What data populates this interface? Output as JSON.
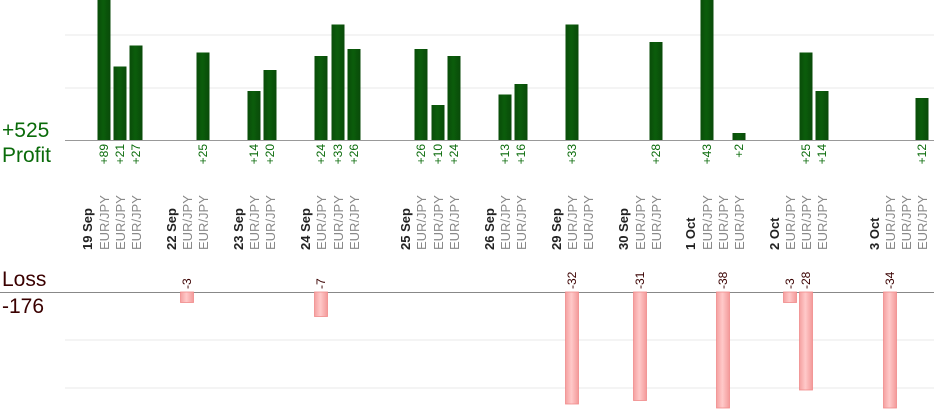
{
  "labels": {
    "profit_total": "+525",
    "profit_word": "Profit",
    "loss_word": "Loss",
    "loss_total": "-176"
  },
  "colors": {
    "profit_bar": "#0b5d0b",
    "profit_text": "#0a6b0a",
    "loss_bar": "#ffb3b3",
    "loss_text": "#3a0000",
    "date_text": "#222222",
    "pair_text": "#888888",
    "grid": "#e8e8e8",
    "axis": "#999999"
  },
  "chart_data": {
    "type": "bar",
    "title": "",
    "xlabel": "",
    "ylabel": "",
    "grid": true,
    "profit_total": 525,
    "loss_total": -176,
    "categories": [
      "19 Sep",
      "EUR/JPY",
      "EUR/JPY",
      "EUR/JPY",
      "22 Sep",
      "EUR/JPY",
      "EUR/JPY",
      "23 Sep",
      "EUR/JPY",
      "EUR/JPY",
      "24 Sep",
      "EUR/JPY",
      "EUR/JPY",
      "EUR/JPY",
      "25 Sep",
      "EUR/JPY",
      "EUR/JPY",
      "EUR/JPY",
      "26 Sep",
      "EUR/JPY",
      "EUR/JPY",
      "29 Sep",
      "EUR/JPY",
      "EUR/JPY",
      "30 Sep",
      "EUR/JPY",
      "EUR/JPY",
      "1 Oct",
      "EUR/JPY",
      "EUR/JPY",
      "EUR/JPY",
      "2 Oct",
      "EUR/JPY",
      "EUR/JPY",
      "EUR/JPY",
      "3 Oct",
      "EUR/JPY",
      "EUR/JPY",
      "EUR/JPY"
    ],
    "series": [
      {
        "values": [
          null,
          89,
          21,
          27,
          null,
          null,
          25,
          null,
          14,
          20,
          null,
          24,
          33,
          26,
          null,
          26,
          10,
          24,
          null,
          13,
          16,
          null,
          33,
          null,
          null,
          null,
          28,
          null,
          43,
          null,
          2,
          null,
          null,
          25,
          14,
          null,
          null,
          null,
          12
        ],
        "labels": [
          null,
          "+89",
          "+21",
          "+27",
          null,
          null,
          "+25",
          null,
          "+14",
          "+20",
          null,
          "+24",
          "+33",
          "+26",
          null,
          "+26",
          "+10",
          "+24",
          null,
          "+13",
          "+16",
          null,
          "+33",
          null,
          null,
          null,
          "+28",
          null,
          "+43",
          null,
          "+2",
          null,
          null,
          "+25",
          "+14",
          null,
          null,
          null,
          "+12"
        ]
      },
      {
        "values": [
          null,
          null,
          null,
          null,
          null,
          -3,
          null,
          null,
          null,
          null,
          null,
          -7,
          null,
          null,
          null,
          null,
          null,
          null,
          null,
          null,
          null,
          null,
          -32,
          null,
          null,
          -31,
          null,
          null,
          null,
          -38,
          null,
          null,
          -3,
          -28,
          null,
          null,
          -34,
          null,
          null
        ],
        "labels": [
          null,
          null,
          null,
          null,
          null,
          "-3",
          null,
          null,
          null,
          null,
          null,
          "-7",
          null,
          null,
          null,
          null,
          null,
          null,
          null,
          null,
          null,
          null,
          "-32",
          null,
          null,
          "-31",
          null,
          null,
          null,
          "-38",
          null,
          null,
          "-3",
          "-28",
          null,
          null,
          "-34",
          null,
          null
        ]
      }
    ]
  }
}
